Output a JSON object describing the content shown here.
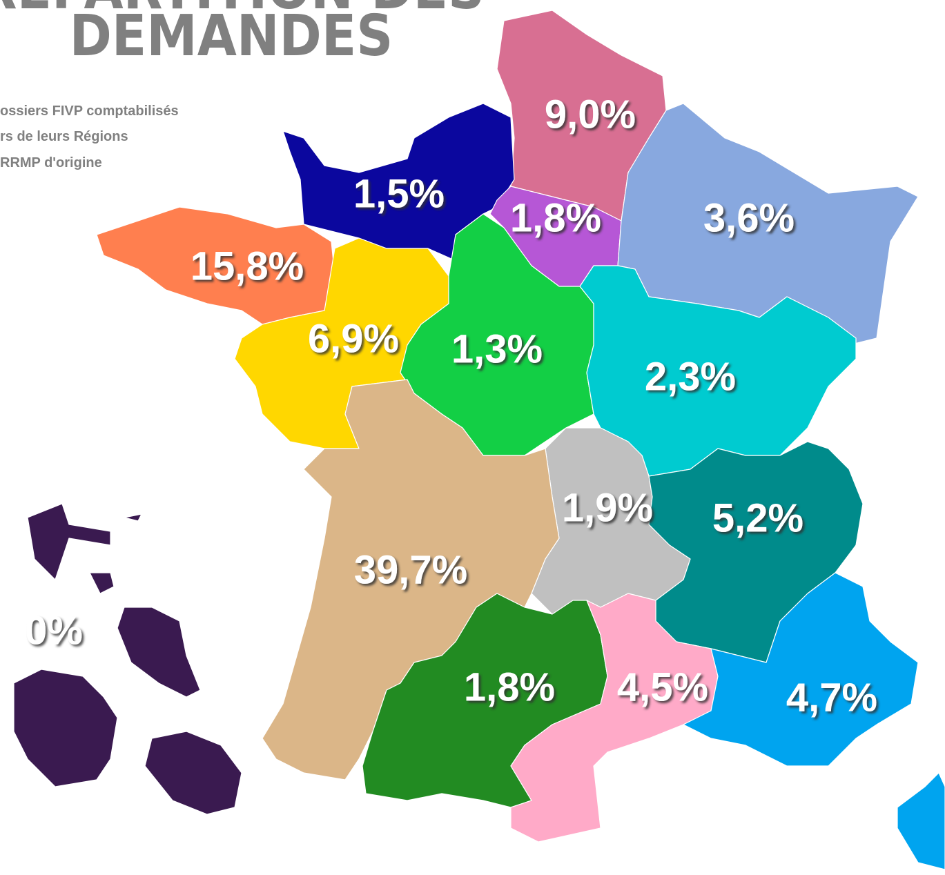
{
  "title": {
    "line1": "REPARTITION DES",
    "line2": "DEMANDES"
  },
  "subtitle": [
    "ossiers FIVP comptabilisés",
    "rs de leurs Régions",
    "RRMP d'origine"
  ],
  "regions": [
    {
      "label": "9,0%",
      "value": 9.0,
      "color": "#d86f92"
    },
    {
      "label": "1,5%",
      "value": 1.5,
      "color": "#0b079e"
    },
    {
      "label": "1,8%",
      "value": 1.8,
      "color": "#b657d6"
    },
    {
      "label": "3,6%",
      "value": 3.6,
      "color": "#88a8df"
    },
    {
      "label": "15,8%",
      "value": 15.8,
      "color": "#ff7f4f"
    },
    {
      "label": "6,9%",
      "value": 6.9,
      "color": "#ffd700"
    },
    {
      "label": "1,3%",
      "value": 1.3,
      "color": "#13cf45"
    },
    {
      "label": "2,3%",
      "value": 2.3,
      "color": "#00cbd0"
    },
    {
      "label": "1,9%",
      "value": 1.9,
      "color": "#c0c0c0"
    },
    {
      "label": "5,2%",
      "value": 5.2,
      "color": "#008b8b"
    },
    {
      "label": "39,7%",
      "value": 39.7,
      "color": "#dbb688"
    },
    {
      "label": "1,8%",
      "value": 1.8,
      "color": "#228b22"
    },
    {
      "label": "4,5%",
      "value": 4.5,
      "color": "#ffaac8"
    },
    {
      "label": "4,7%",
      "value": 4.7,
      "color": "#00a4ef"
    },
    {
      "label": "0%",
      "value": 0,
      "color": "#3a1a50"
    }
  ]
}
